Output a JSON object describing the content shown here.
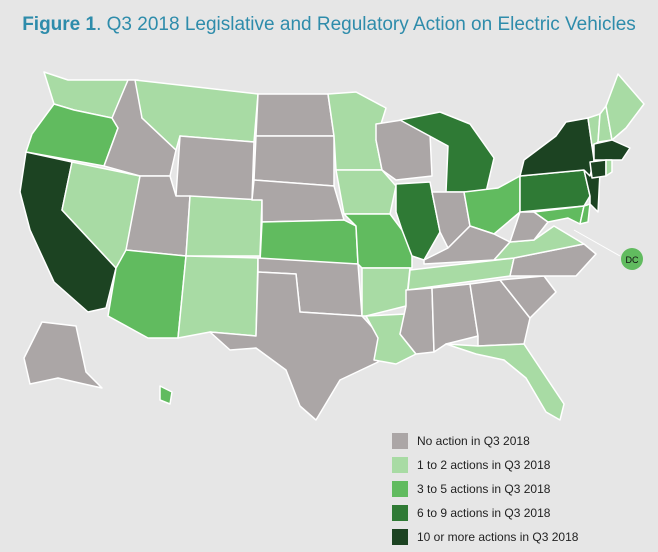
{
  "title": {
    "figure_label": "Figure 1",
    "text": ". Q3 2018 Legislative and Regulatory Action on Electric Vehicles"
  },
  "colors": {
    "none": "#aba6a6",
    "c1_2": "#a8dba4",
    "c3_5": "#61bb5f",
    "c6_9": "#2f7a35",
    "c10": "#1c4322",
    "border": "#ffffff"
  },
  "legend": [
    {
      "key": "none",
      "label": "No action in Q3 2018"
    },
    {
      "key": "c1_2",
      "label": "1 to 2 actions in Q3 2018"
    },
    {
      "key": "c3_5",
      "label": "3 to 5 actions in Q3 2018"
    },
    {
      "key": "c6_9",
      "label": "6 to 9 actions in Q3 2018"
    },
    {
      "key": "c10",
      "label": "10 or more actions in Q3 2018"
    }
  ],
  "dc_label": "DC",
  "states": {
    "WA": "c1_2",
    "OR": "c3_5",
    "CA": "c10",
    "NV": "c1_2",
    "ID": "none",
    "MT": "c1_2",
    "WY": "none",
    "UT": "none",
    "AZ": "c3_5",
    "CO": "c1_2",
    "NM": "c1_2",
    "ND": "none",
    "SD": "none",
    "NE": "none",
    "KS": "c3_5",
    "OK": "none",
    "TX": "none",
    "MN": "c1_2",
    "IA": "c1_2",
    "MO": "c3_5",
    "AR": "c1_2",
    "LA": "c1_2",
    "WI": "none",
    "IL": "c6_9",
    "MI": "c6_9",
    "IN": "none",
    "OH": "c3_5",
    "KY": "none",
    "TN": "c1_2",
    "MS": "none",
    "AL": "none",
    "GA": "none",
    "FL": "c1_2",
    "SC": "none",
    "NC": "none",
    "VA": "c1_2",
    "WV": "none",
    "MD": "c3_5",
    "DE": "c3_5",
    "PA": "c6_9",
    "NJ": "c10",
    "NY": "c10",
    "CT": "c10",
    "RI": "c1_2",
    "MA": "c10",
    "VT": "c1_2",
    "NH": "c1_2",
    "ME": "c1_2",
    "AK": "none",
    "HI": "c3_5",
    "DC": "c3_5"
  }
}
